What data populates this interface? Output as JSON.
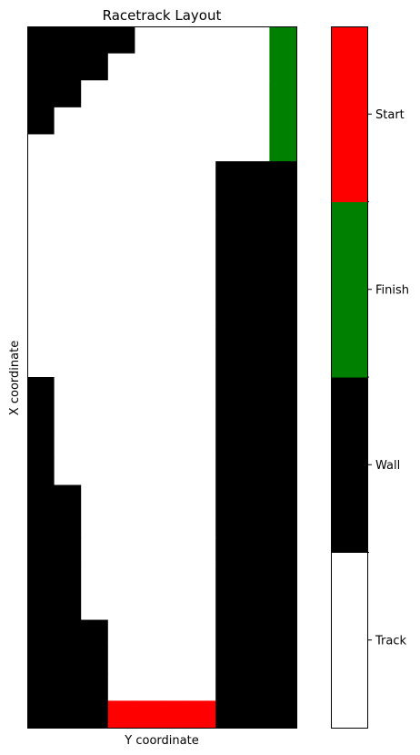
{
  "chart_data": {
    "type": "heatmap",
    "title": "Racetrack Layout",
    "xlabel": "Y coordinate",
    "ylabel": "X coordinate",
    "rows": 26,
    "cols": 10,
    "grid": false,
    "x_ticks_shown": false,
    "y_ticks_shown": false,
    "legend_placement": "colorbar-right",
    "cell_codes": {
      "0": "Track",
      "1": "Wall",
      "2": "Finish",
      "3": "Start"
    },
    "cells": [
      [
        1,
        1,
        1,
        1,
        0,
        0,
        0,
        0,
        0,
        2
      ],
      [
        1,
        1,
        1,
        0,
        0,
        0,
        0,
        0,
        0,
        2
      ],
      [
        1,
        1,
        0,
        0,
        0,
        0,
        0,
        0,
        0,
        2
      ],
      [
        1,
        0,
        0,
        0,
        0,
        0,
        0,
        0,
        0,
        2
      ],
      [
        0,
        0,
        0,
        0,
        0,
        0,
        0,
        0,
        0,
        2
      ],
      [
        0,
        0,
        0,
        0,
        0,
        0,
        0,
        1,
        1,
        1
      ],
      [
        0,
        0,
        0,
        0,
        0,
        0,
        0,
        1,
        1,
        1
      ],
      [
        0,
        0,
        0,
        0,
        0,
        0,
        0,
        1,
        1,
        1
      ],
      [
        0,
        0,
        0,
        0,
        0,
        0,
        0,
        1,
        1,
        1
      ],
      [
        0,
        0,
        0,
        0,
        0,
        0,
        0,
        1,
        1,
        1
      ],
      [
        0,
        0,
        0,
        0,
        0,
        0,
        0,
        1,
        1,
        1
      ],
      [
        0,
        0,
        0,
        0,
        0,
        0,
        0,
        1,
        1,
        1
      ],
      [
        0,
        0,
        0,
        0,
        0,
        0,
        0,
        1,
        1,
        1
      ],
      [
        1,
        0,
        0,
        0,
        0,
        0,
        0,
        1,
        1,
        1
      ],
      [
        1,
        0,
        0,
        0,
        0,
        0,
        0,
        1,
        1,
        1
      ],
      [
        1,
        0,
        0,
        0,
        0,
        0,
        0,
        1,
        1,
        1
      ],
      [
        1,
        0,
        0,
        0,
        0,
        0,
        0,
        1,
        1,
        1
      ],
      [
        1,
        1,
        0,
        0,
        0,
        0,
        0,
        1,
        1,
        1
      ],
      [
        1,
        1,
        0,
        0,
        0,
        0,
        0,
        1,
        1,
        1
      ],
      [
        1,
        1,
        0,
        0,
        0,
        0,
        0,
        1,
        1,
        1
      ],
      [
        1,
        1,
        0,
        0,
        0,
        0,
        0,
        1,
        1,
        1
      ],
      [
        1,
        1,
        0,
        0,
        0,
        0,
        0,
        1,
        1,
        1
      ],
      [
        1,
        1,
        1,
        0,
        0,
        0,
        0,
        1,
        1,
        1
      ],
      [
        1,
        1,
        1,
        0,
        0,
        0,
        0,
        1,
        1,
        1
      ],
      [
        1,
        1,
        1,
        0,
        0,
        0,
        0,
        1,
        1,
        1
      ],
      [
        1,
        1,
        1,
        3,
        3,
        3,
        3,
        1,
        1,
        1
      ]
    ],
    "colorbar": {
      "labels": [
        "Track",
        "Wall",
        "Finish",
        "Start"
      ],
      "colors": [
        "#ffffff",
        "#000000",
        "#008000",
        "#ff0000"
      ]
    }
  }
}
